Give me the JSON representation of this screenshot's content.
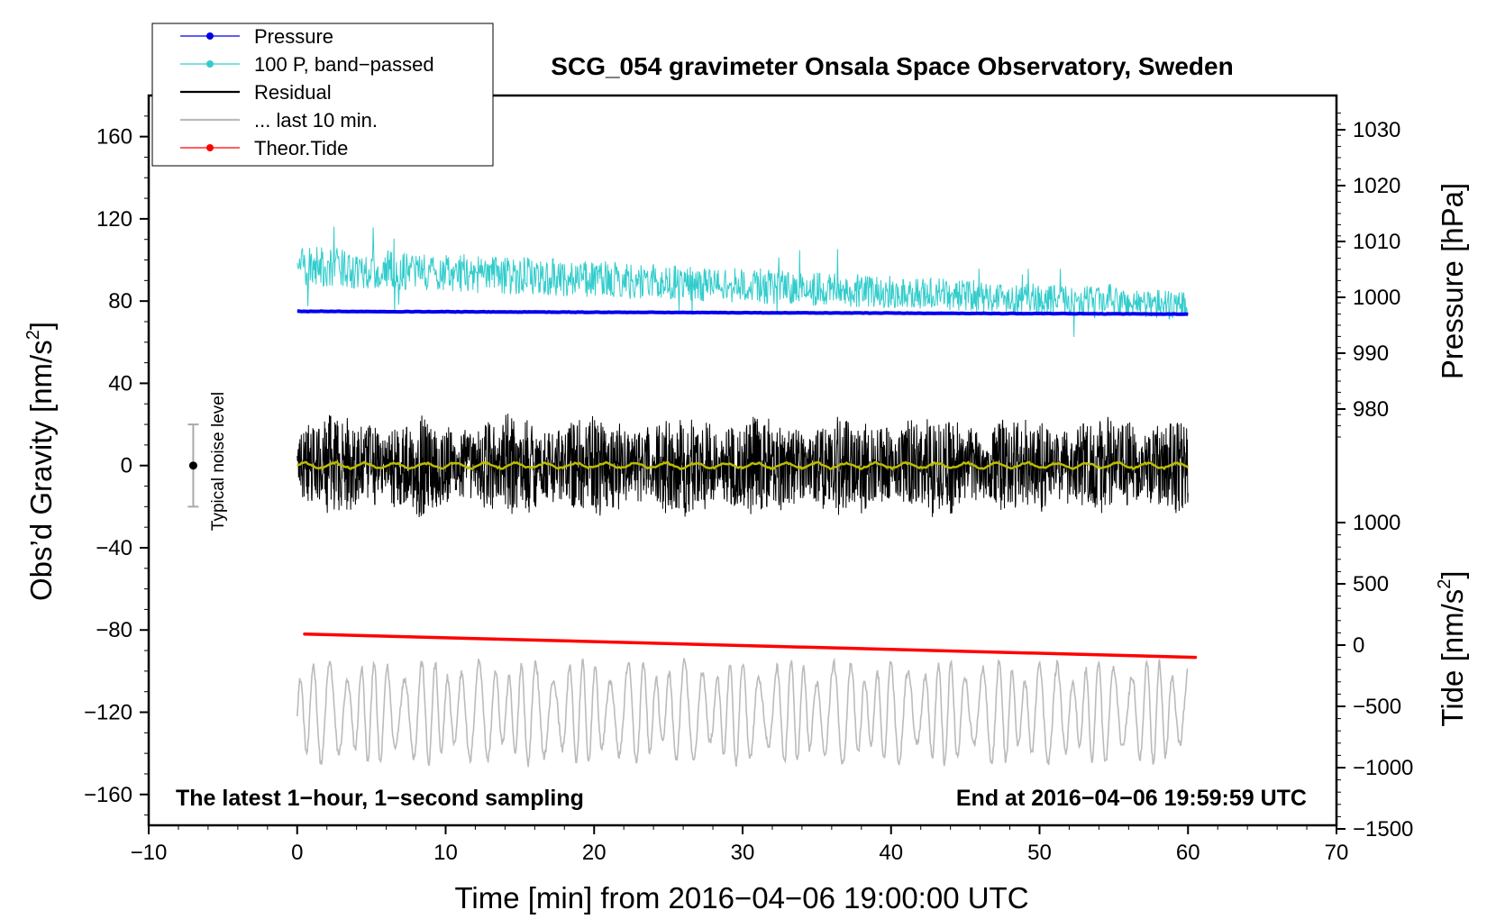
{
  "chart_data": {
    "type": "line",
    "title": "SCG_054 gravimeter Onsala Space Observatory, Sweden",
    "xlabel": "Time [min] from 2016−04−06 19:00:00 UTC",
    "ylabel_left": "Obs’d Gravity [nm/s",
    "ylabel_left_sup": "2",
    "ylabel_left_close": "]",
    "ylabel_right_pressure": "Pressure [hPa]",
    "ylabel_right_tide": "Tide [nm/s",
    "ylabel_right_tide_sup": "2",
    "ylabel_right_tide_close": "]",
    "xlim": [
      -10,
      70
    ],
    "ylim_left": [
      -175,
      180
    ],
    "x_ticks": [
      {
        "value": -10,
        "label": "−10"
      },
      {
        "value": 0,
        "label": "0"
      },
      {
        "value": 10,
        "label": "10"
      },
      {
        "value": 20,
        "label": "20"
      },
      {
        "value": 30,
        "label": "30"
      },
      {
        "value": 40,
        "label": "40"
      },
      {
        "value": 50,
        "label": "50"
      },
      {
        "value": 60,
        "label": "60"
      },
      {
        "value": 70,
        "label": "70"
      }
    ],
    "y_left_ticks": [
      {
        "value": 160,
        "label": "160"
      },
      {
        "value": 120,
        "label": "120"
      },
      {
        "value": 80,
        "label": "80"
      },
      {
        "value": 40,
        "label": "40"
      },
      {
        "value": 0,
        "label": "0"
      },
      {
        "value": -40,
        "label": "−40"
      },
      {
        "value": -80,
        "label": "−80"
      },
      {
        "value": -120,
        "label": "−120"
      },
      {
        "value": -160,
        "label": "−160"
      }
    ],
    "pressure_ticks": [
      {
        "value": 1030,
        "label": "1030"
      },
      {
        "value": 1020,
        "label": "1020"
      },
      {
        "value": 1010,
        "label": "1010"
      },
      {
        "value": 1000,
        "label": "1000"
      },
      {
        "value": 990,
        "label": "990"
      },
      {
        "value": 980,
        "label": "980"
      }
    ],
    "tide_ticks": [
      {
        "value": 1000,
        "label": "1000"
      },
      {
        "value": 500,
        "label": "500"
      },
      {
        "value": 0,
        "label": "0"
      },
      {
        "value": -500,
        "label": "−500"
      },
      {
        "value": -1000,
        "label": "−1000"
      },
      {
        "value": -1500,
        "label": "−1500"
      }
    ],
    "legend": [
      {
        "label": "Pressure",
        "color": "#0000ee",
        "marker": true
      },
      {
        "label": "100 P, band−passed",
        "color": "#33cccc",
        "marker": true
      },
      {
        "label": "Residual",
        "color": "#000000",
        "marker": false
      },
      {
        "label": "... last 10 min.",
        "color": "#bbbbbb",
        "marker": false
      },
      {
        "label": "Theor.Tide",
        "color": "#ff0000",
        "marker": true
      }
    ],
    "series": [
      {
        "name": "Pressure",
        "color": "#0000ee",
        "unit": "hPa",
        "x_range": [
          0,
          60
        ],
        "start": 997.5,
        "end": 997.0,
        "style": "thick-line"
      },
      {
        "name": "100 P, band−passed",
        "color": "#33cccc",
        "x_range": [
          0,
          60
        ],
        "center_start": 97,
        "center_end": 78,
        "amplitude_start": 10,
        "amplitude_end": 7,
        "style": "noisy-line"
      },
      {
        "name": "Residual",
        "color": "#000000",
        "x_range": [
          0,
          60
        ],
        "center": 0,
        "amplitude": 22,
        "style": "noisy-line"
      },
      {
        "name": "Residual smoothed",
        "color": "#bbbb00",
        "x_range": [
          0,
          60
        ],
        "center": 0,
        "amplitude": 1.5,
        "style": "line"
      },
      {
        "name": "... last 10 min.",
        "color": "#bbbbbb",
        "x_range": [
          0,
          60
        ],
        "center": -120,
        "amplitude": 25,
        "style": "oscillation"
      },
      {
        "name": "Theor.Tide",
        "color": "#ff0000",
        "unit": "nm/s2",
        "x_range": [
          0.5,
          60.5
        ],
        "start": 90,
        "end": -100,
        "style": "thick-line"
      }
    ],
    "noise_bar": {
      "x": -7,
      "center": 0,
      "low": -20,
      "high": 20,
      "label": "Typical noise level"
    },
    "annotations": {
      "bottom_left": "The latest 1−hour, 1−second sampling",
      "bottom_right": "End at 2016−04−06 19:59:59 UTC"
    }
  }
}
